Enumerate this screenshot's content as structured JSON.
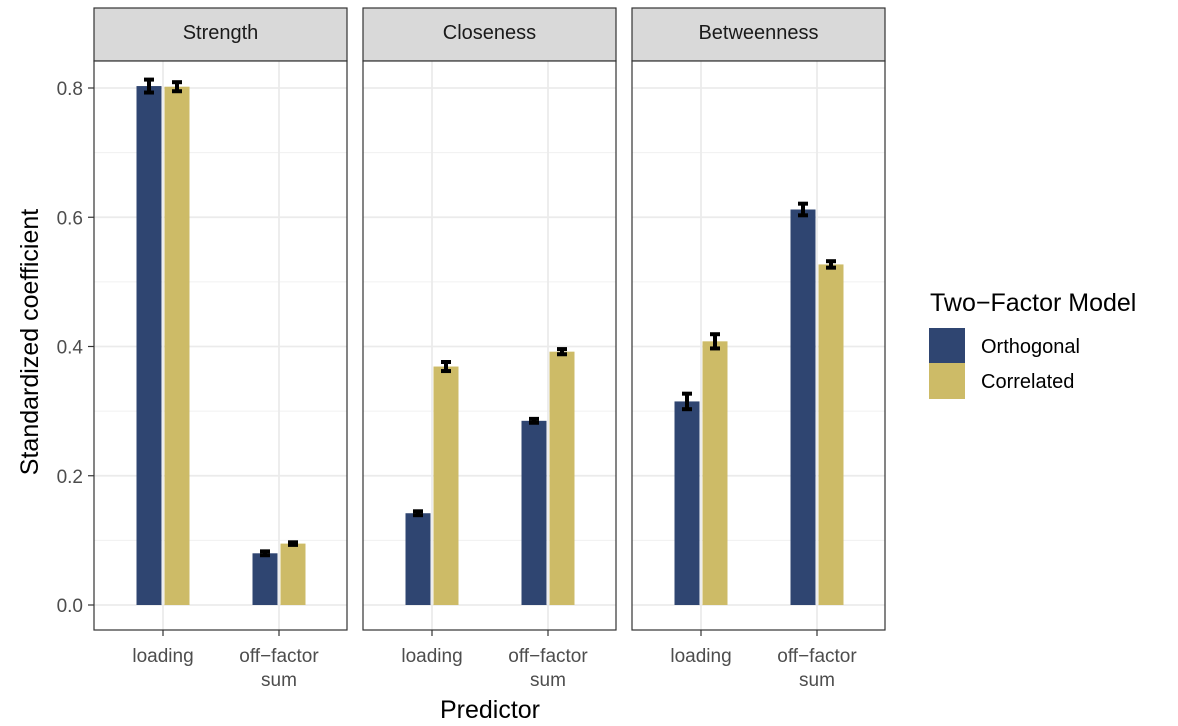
{
  "chart_data": {
    "type": "bar",
    "facets": [
      "Strength",
      "Closeness",
      "Betweenness"
    ],
    "categories": [
      "loading",
      "off−factor sum"
    ],
    "category_labels": [
      [
        "loading"
      ],
      [
        "off−factor",
        "sum"
      ]
    ],
    "series": [
      {
        "name": "Orthogonal",
        "color": "#2f4571",
        "values": {
          "Strength": [
            0.803,
            0.08
          ],
          "Closeness": [
            0.142,
            0.285
          ],
          "Betweenness": [
            0.315,
            0.612
          ]
        },
        "errors": {
          "Strength": [
            0.01,
            0.003
          ],
          "Closeness": [
            0.003,
            0.003
          ],
          "Betweenness": [
            0.012,
            0.009
          ]
        }
      },
      {
        "name": "Correlated",
        "color": "#cdbb67",
        "values": {
          "Strength": [
            0.802,
            0.095
          ],
          "Closeness": [
            0.369,
            0.392
          ],
          "Betweenness": [
            0.408,
            0.527
          ]
        },
        "errors": {
          "Strength": [
            0.007,
            0.002
          ],
          "Closeness": [
            0.007,
            0.004
          ],
          "Betweenness": [
            0.011,
            0.005
          ]
        }
      }
    ],
    "xlabel": "Predictor",
    "ylabel": "Standardized coefficient",
    "yticks": [
      0.0,
      0.2,
      0.4,
      0.6,
      0.8
    ],
    "ytick_labels": [
      "0.0",
      "0.2",
      "0.4",
      "0.6",
      "0.8"
    ],
    "ylim": [
      -0.04,
      0.89
    ],
    "legend": {
      "title": "Two−Factor Model",
      "position": "right"
    },
    "grid": true
  }
}
